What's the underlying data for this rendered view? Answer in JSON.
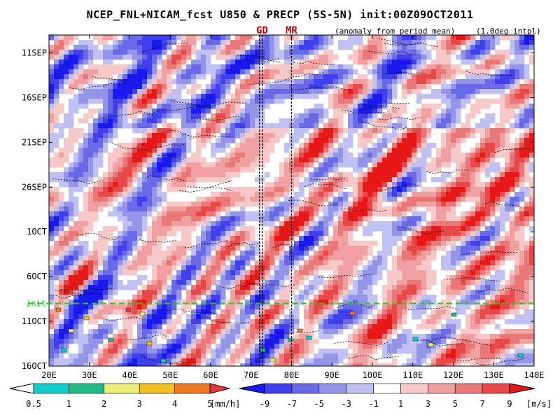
{
  "chart_data": {
    "type": "heatmap",
    "title": "NCEP_FNL+NICAM_fcst U850 & PRECP (5S-5N) init:00Z09OCT2011",
    "subtitle": "(anomaly from period mean)",
    "note": "(1.0deg intpl)",
    "x_ticks": [
      "20E",
      "30E",
      "40E",
      "50E",
      "60E",
      "70E",
      "80E",
      "90E",
      "100E",
      "110E",
      "120E",
      "130E",
      "140E"
    ],
    "x_values": [
      20,
      30,
      40,
      50,
      60,
      70,
      80,
      90,
      100,
      110,
      120,
      130,
      140
    ],
    "xlim": [
      20,
      140
    ],
    "y_ticks": [
      "11SEP",
      "16SEP",
      "21SEP",
      "26SEP",
      "1OCT",
      "6OCT",
      "11OCT",
      "16OCT"
    ],
    "y_days": [
      0,
      5,
      10,
      15,
      20,
      25,
      30,
      35
    ],
    "ylim_days": [
      -2,
      35
    ],
    "init_label": "init",
    "init_day": 28,
    "markers": [
      {
        "label": "GD",
        "lon": 72.4
      },
      {
        "label": "MR",
        "lon": 80.0
      }
    ],
    "u850_colorbar": {
      "levels": [
        "-9",
        "-7",
        "-5",
        "-3",
        "-1",
        "1",
        "3",
        "5",
        "7",
        "9"
      ],
      "unit": "[m/s]",
      "colors": [
        "#1a1aee",
        "#4040ee",
        "#6a6ae8",
        "#9494e8",
        "#c0c0f2",
        "#ffffff",
        "#f6c8c8",
        "#f0a0a0",
        "#ea7878",
        "#e84848",
        "#e81818"
      ]
    },
    "precp_colorbar": {
      "levels": [
        "0.5",
        "1",
        "2",
        "3",
        "4",
        "5"
      ],
      "unit": "[mm/h]",
      "colors": [
        "#ffffff",
        "#11cccc",
        "#22bb88",
        "#eeee77",
        "#f0c020",
        "#ee7722",
        "#ee3344"
      ]
    }
  }
}
